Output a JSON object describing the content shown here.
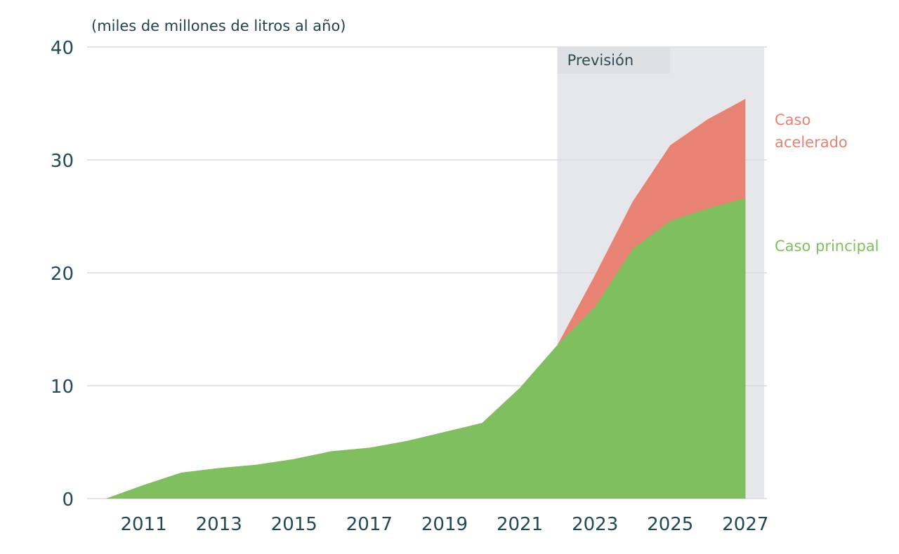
{
  "chart_data": {
    "type": "area",
    "unit_label": "(miles de millones de litros al año)",
    "forecast_label": "Previsión",
    "forecast_start": 2022,
    "forecast_end": 2027.5,
    "xlim": [
      2009.5,
      2027.5
    ],
    "ylim": [
      0,
      40
    ],
    "yticks": [
      "0",
      "10",
      "20",
      "30",
      "40"
    ],
    "xticks": [
      "2011",
      "2013",
      "2015",
      "2017",
      "2019",
      "2021",
      "2023",
      "2025",
      "2027"
    ],
    "grid": true,
    "x": [
      2010,
      2011,
      2012,
      2013,
      2014,
      2015,
      2016,
      2017,
      2018,
      2019,
      2020,
      2021,
      2022,
      2023,
      2024,
      2025,
      2026,
      2027
    ],
    "series": [
      {
        "name": "Caso principal",
        "color": "#7fbf5f",
        "values": [
          0,
          1.2,
          2.3,
          2.7,
          3.0,
          3.5,
          4.2,
          4.5,
          5.1,
          5.9,
          6.7,
          9.8,
          13.6,
          17.0,
          22.1,
          24.6,
          25.7,
          26.6
        ]
      },
      {
        "name": "Caso acelerado",
        "color": "#e88273",
        "values": [
          0,
          1.2,
          2.3,
          2.7,
          3.0,
          3.5,
          4.2,
          4.5,
          5.1,
          5.9,
          6.7,
          9.8,
          13.6,
          19.8,
          26.3,
          31.3,
          33.6,
          35.4
        ]
      }
    ],
    "colors": {
      "axis_text": "#1f4a56",
      "forecast_band": "#e6e7ea",
      "grid": "#dcdcdc"
    }
  }
}
